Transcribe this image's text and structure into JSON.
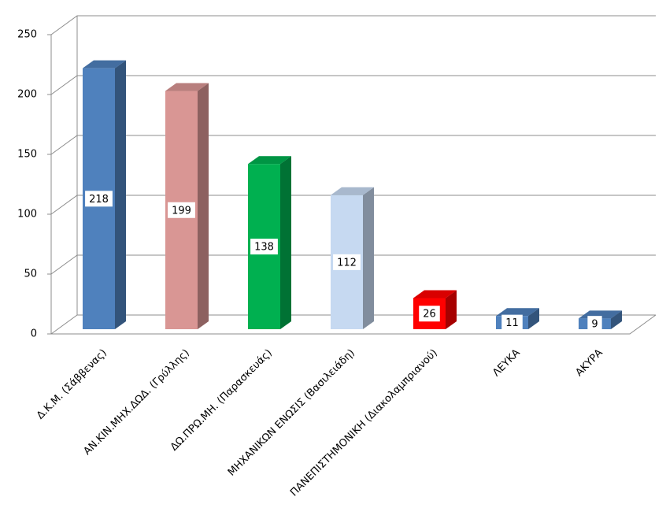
{
  "chart_data": {
    "type": "bar3d",
    "categories": [
      "Δ.Κ.Μ. (Σάββενας)",
      "ΑΝ.ΚΙΝ.ΜΗΧ.ΔΩΔ. (Γρύλλης)",
      "ΔΩ.ΠΡΩ.ΜΗ. (Παρασκευάς)",
      "ΜΗΧΑΝΙΚΩΝ ΕΝΩΣΙΣ (Βασιλειάδη)",
      "ΠΑΝΕΠΙΣΤΗΜΟΝΙΚΗ (Διακολαμπριανού)",
      "ΛΕΥΚΑ",
      "ΑΚΥΡΑ"
    ],
    "values": [
      218,
      199,
      138,
      112,
      26,
      11,
      9
    ],
    "colors": [
      "#4f81bd",
      "#d99694",
      "#00b050",
      "#c6d9f1",
      "#ff0000",
      "#4f81bd",
      "#4f81bd"
    ],
    "ylim": [
      0,
      250
    ],
    "yticks": [
      0,
      50,
      100,
      150,
      200,
      250
    ],
    "grid": true
  }
}
